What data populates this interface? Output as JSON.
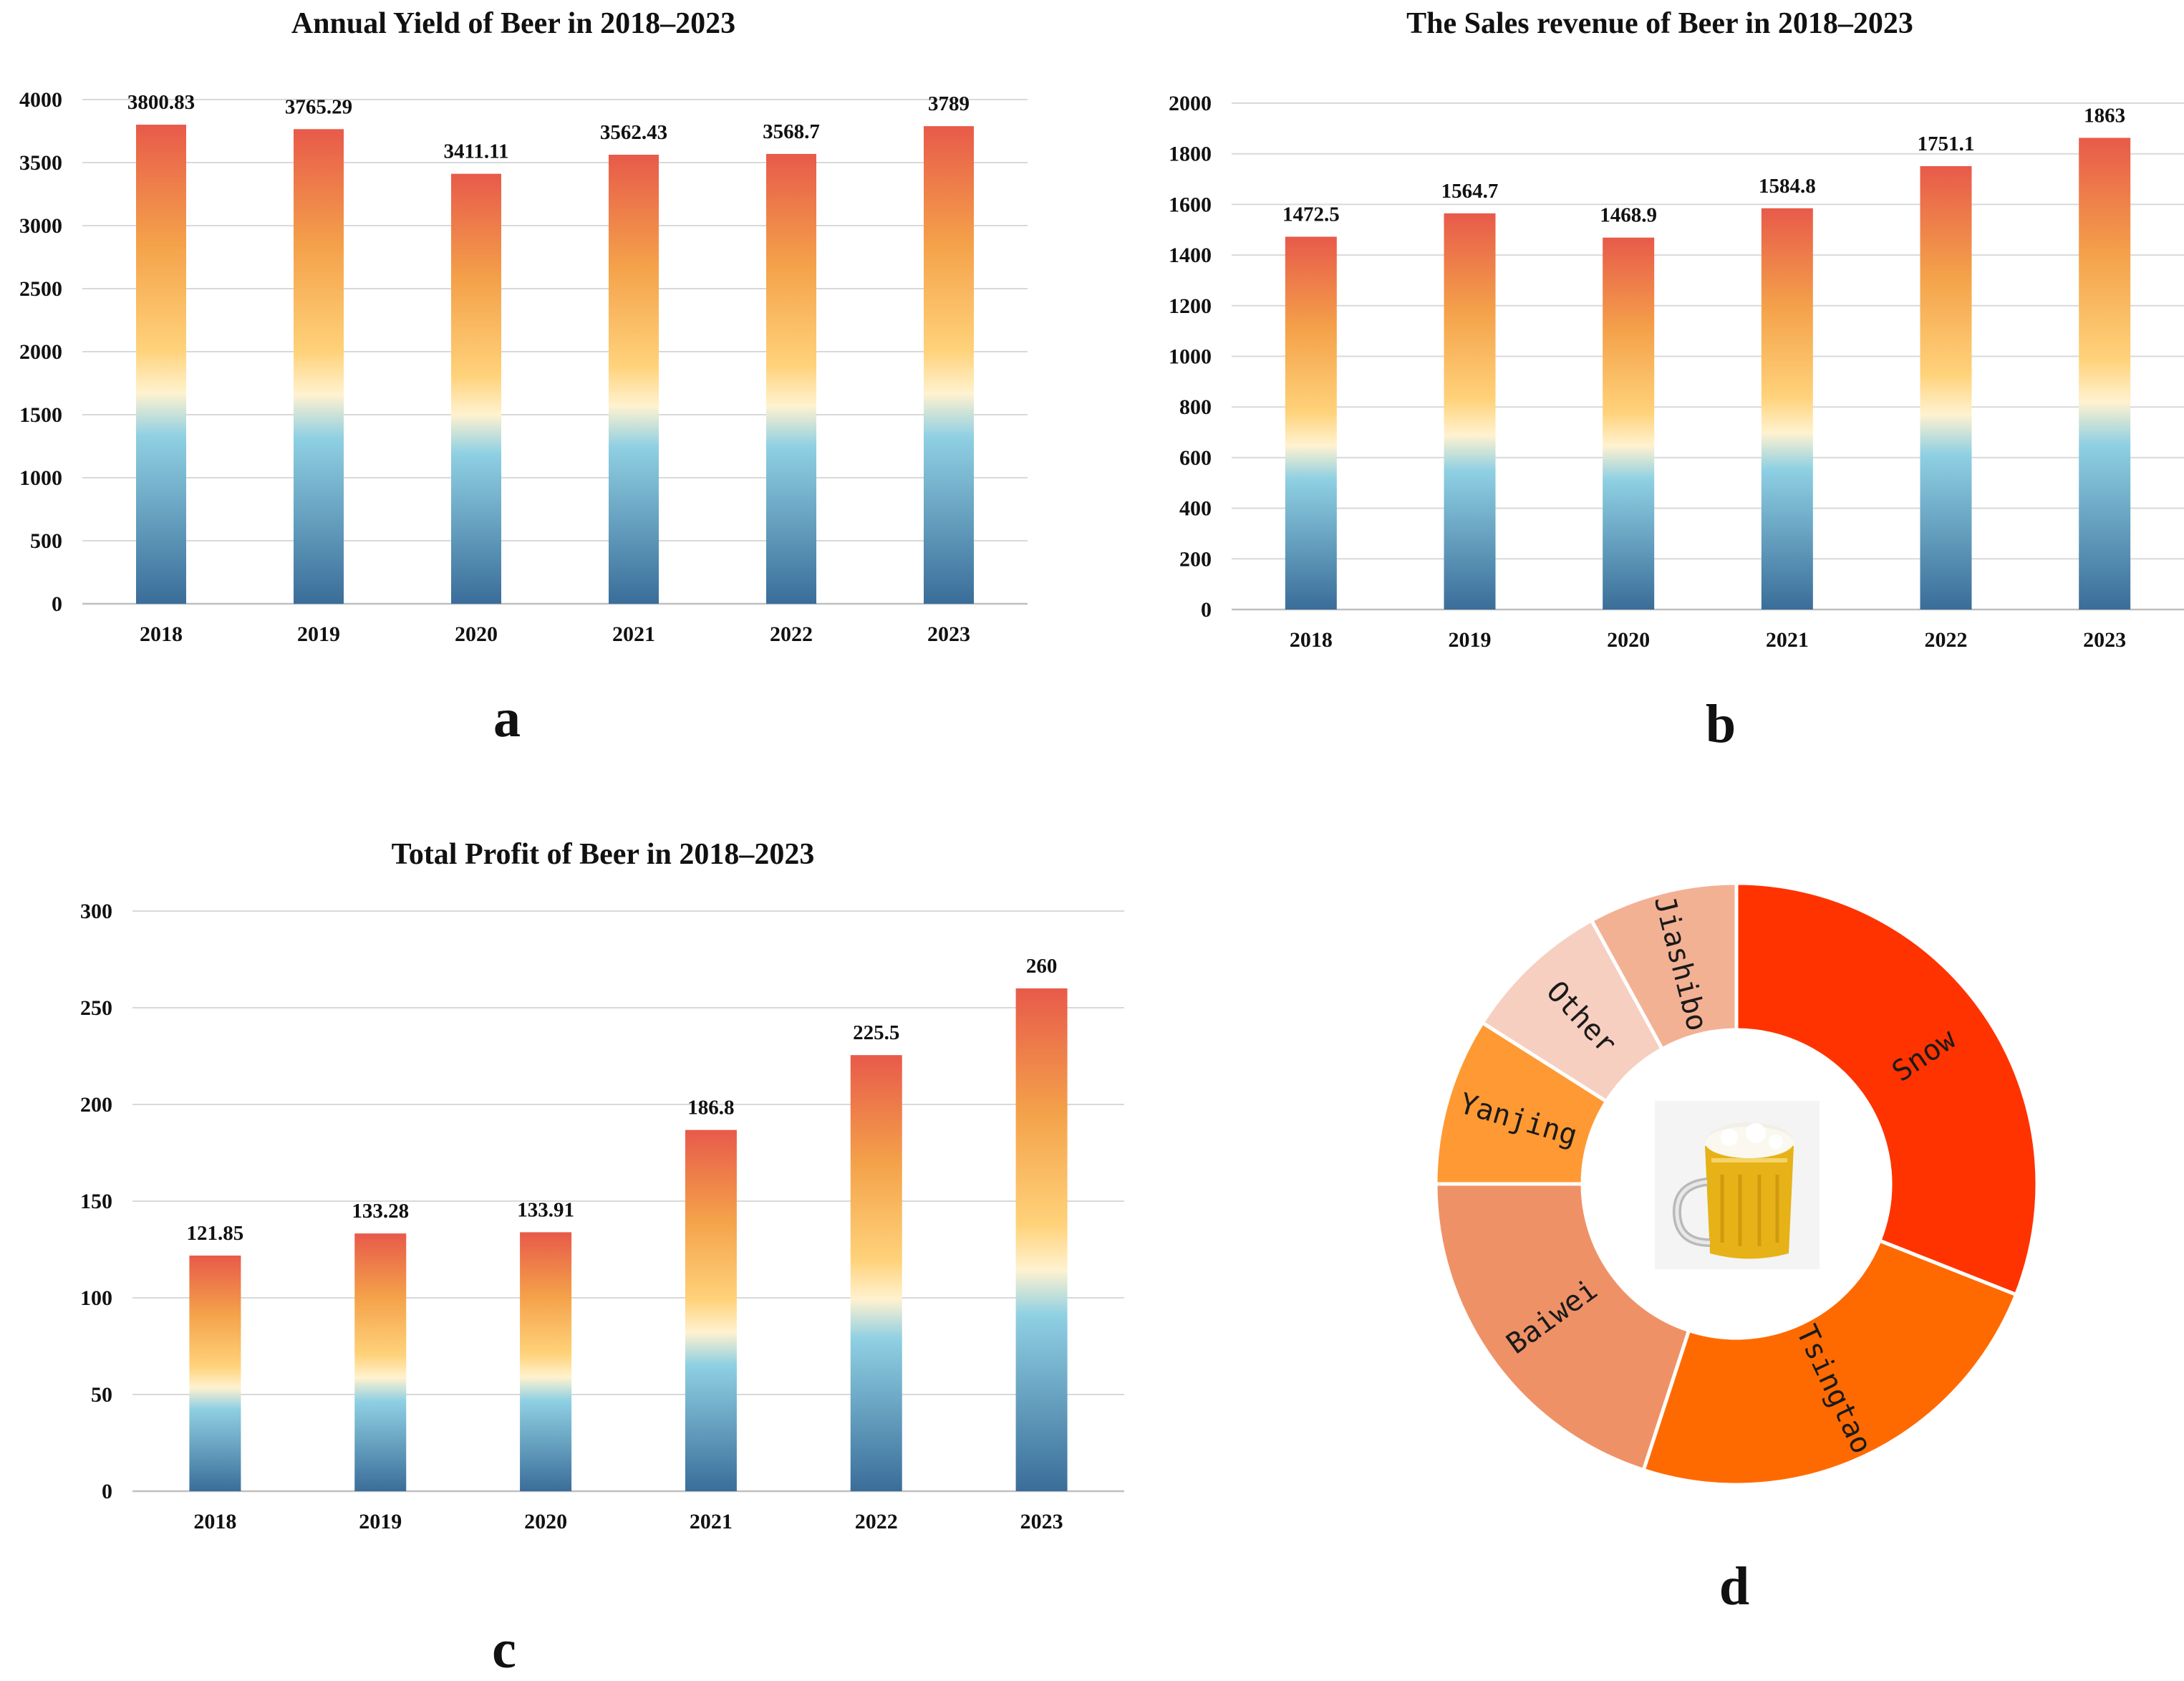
{
  "chart_data": [
    {
      "id": "a",
      "type": "bar",
      "title": "Annual Yield of Beer in 2018–2023",
      "categories": [
        "2018",
        "2019",
        "2020",
        "2021",
        "2022",
        "2023"
      ],
      "values": [
        3800.83,
        3765.29,
        3411.11,
        3562.43,
        3568.7,
        3789
      ],
      "value_labels": [
        "3800.83",
        "3765.29",
        "3411.11",
        "3562.43",
        "3568.7",
        "3789"
      ],
      "yticks": [
        0,
        500,
        1000,
        1500,
        2000,
        2500,
        3000,
        3500,
        4000
      ],
      "ylim": [
        0,
        4000
      ],
      "xlabel": "",
      "ylabel": "",
      "grid": true
    },
    {
      "id": "b",
      "type": "bar",
      "title": "The Sales revenue of Beer in 2018–2023",
      "categories": [
        "2018",
        "2019",
        "2020",
        "2021",
        "2022",
        "2023"
      ],
      "values": [
        1472.5,
        1564.7,
        1468.9,
        1584.8,
        1751.1,
        1863
      ],
      "value_labels": [
        "1472.5",
        "1564.7",
        "1468.9",
        "1584.8",
        "1751.1",
        "1863"
      ],
      "yticks": [
        0,
        200,
        400,
        600,
        800,
        1000,
        1200,
        1400,
        1600,
        1800,
        2000
      ],
      "ylim": [
        0,
        2000
      ],
      "xlabel": "",
      "ylabel": "",
      "grid": true
    },
    {
      "id": "c",
      "type": "bar",
      "title": "Total Profit of Beer in 2018–2023",
      "categories": [
        "2018",
        "2019",
        "2020",
        "2021",
        "2022",
        "2023"
      ],
      "values": [
        121.85,
        133.28,
        133.91,
        186.8,
        225.5,
        260
      ],
      "value_labels": [
        "121.85",
        "133.28",
        "133.91",
        "186.8",
        "225.5",
        "260"
      ],
      "yticks": [
        0,
        50,
        100,
        150,
        200,
        250,
        300
      ],
      "ylim": [
        0,
        300
      ],
      "xlabel": "",
      "ylabel": "",
      "grid": true
    },
    {
      "id": "d",
      "type": "pie",
      "donut": true,
      "title": "",
      "labels": [
        "Snow",
        "Tsingtao",
        "Baiwei",
        "Yanjing",
        "Other",
        "Jiashibo"
      ],
      "values": [
        31,
        24,
        20,
        9,
        8,
        8
      ],
      "colors": [
        "#ff3300",
        "#ff6a00",
        "#ef9166",
        "#ff9933",
        "#f7cfc0",
        "#f3b194"
      ],
      "center_image": "beer-mug"
    }
  ],
  "panel_letters": [
    "a",
    "b",
    "c",
    "d"
  ],
  "colors": {
    "bar_gradient": [
      "#e85a4a",
      "#f4a24a",
      "#ffd27a",
      "#8fd0e3",
      "#3a6d99"
    ],
    "grid": "#d9d9d9",
    "slice_border": "#ffffff"
  }
}
